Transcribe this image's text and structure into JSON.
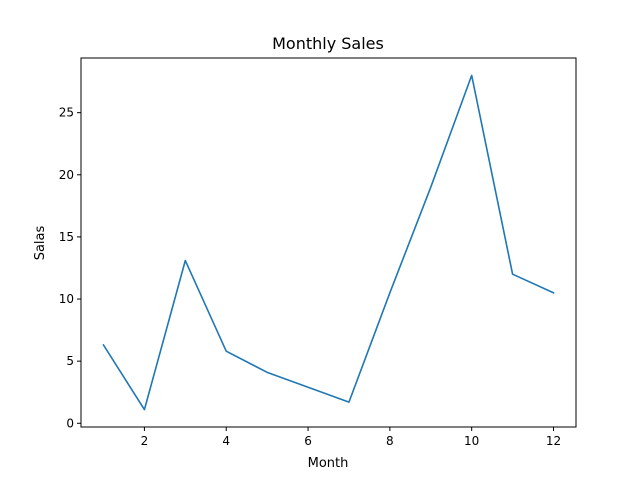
{
  "chart_data": {
    "type": "line",
    "title": "Monthly Sales",
    "xlabel": "Month",
    "ylabel": "Salas",
    "xlim": [
      0.45,
      12.55
    ],
    "ylim": [
      -0.3,
      29.4
    ],
    "xticks": [
      2,
      4,
      6,
      8,
      10,
      12
    ],
    "yticks": [
      0,
      5,
      10,
      15,
      20,
      25
    ],
    "grid": false,
    "legend": "none",
    "series": [
      {
        "color": "#1f77b4",
        "x": [
          1,
          2,
          3,
          4,
          5,
          6,
          7,
          8,
          9,
          10,
          11,
          12
        ],
        "values": [
          6.3,
          1.1,
          13.1,
          5.8,
          4.1,
          2.9,
          1.7,
          10.5,
          19.0,
          28.0,
          12.0,
          10.5
        ]
      }
    ]
  }
}
